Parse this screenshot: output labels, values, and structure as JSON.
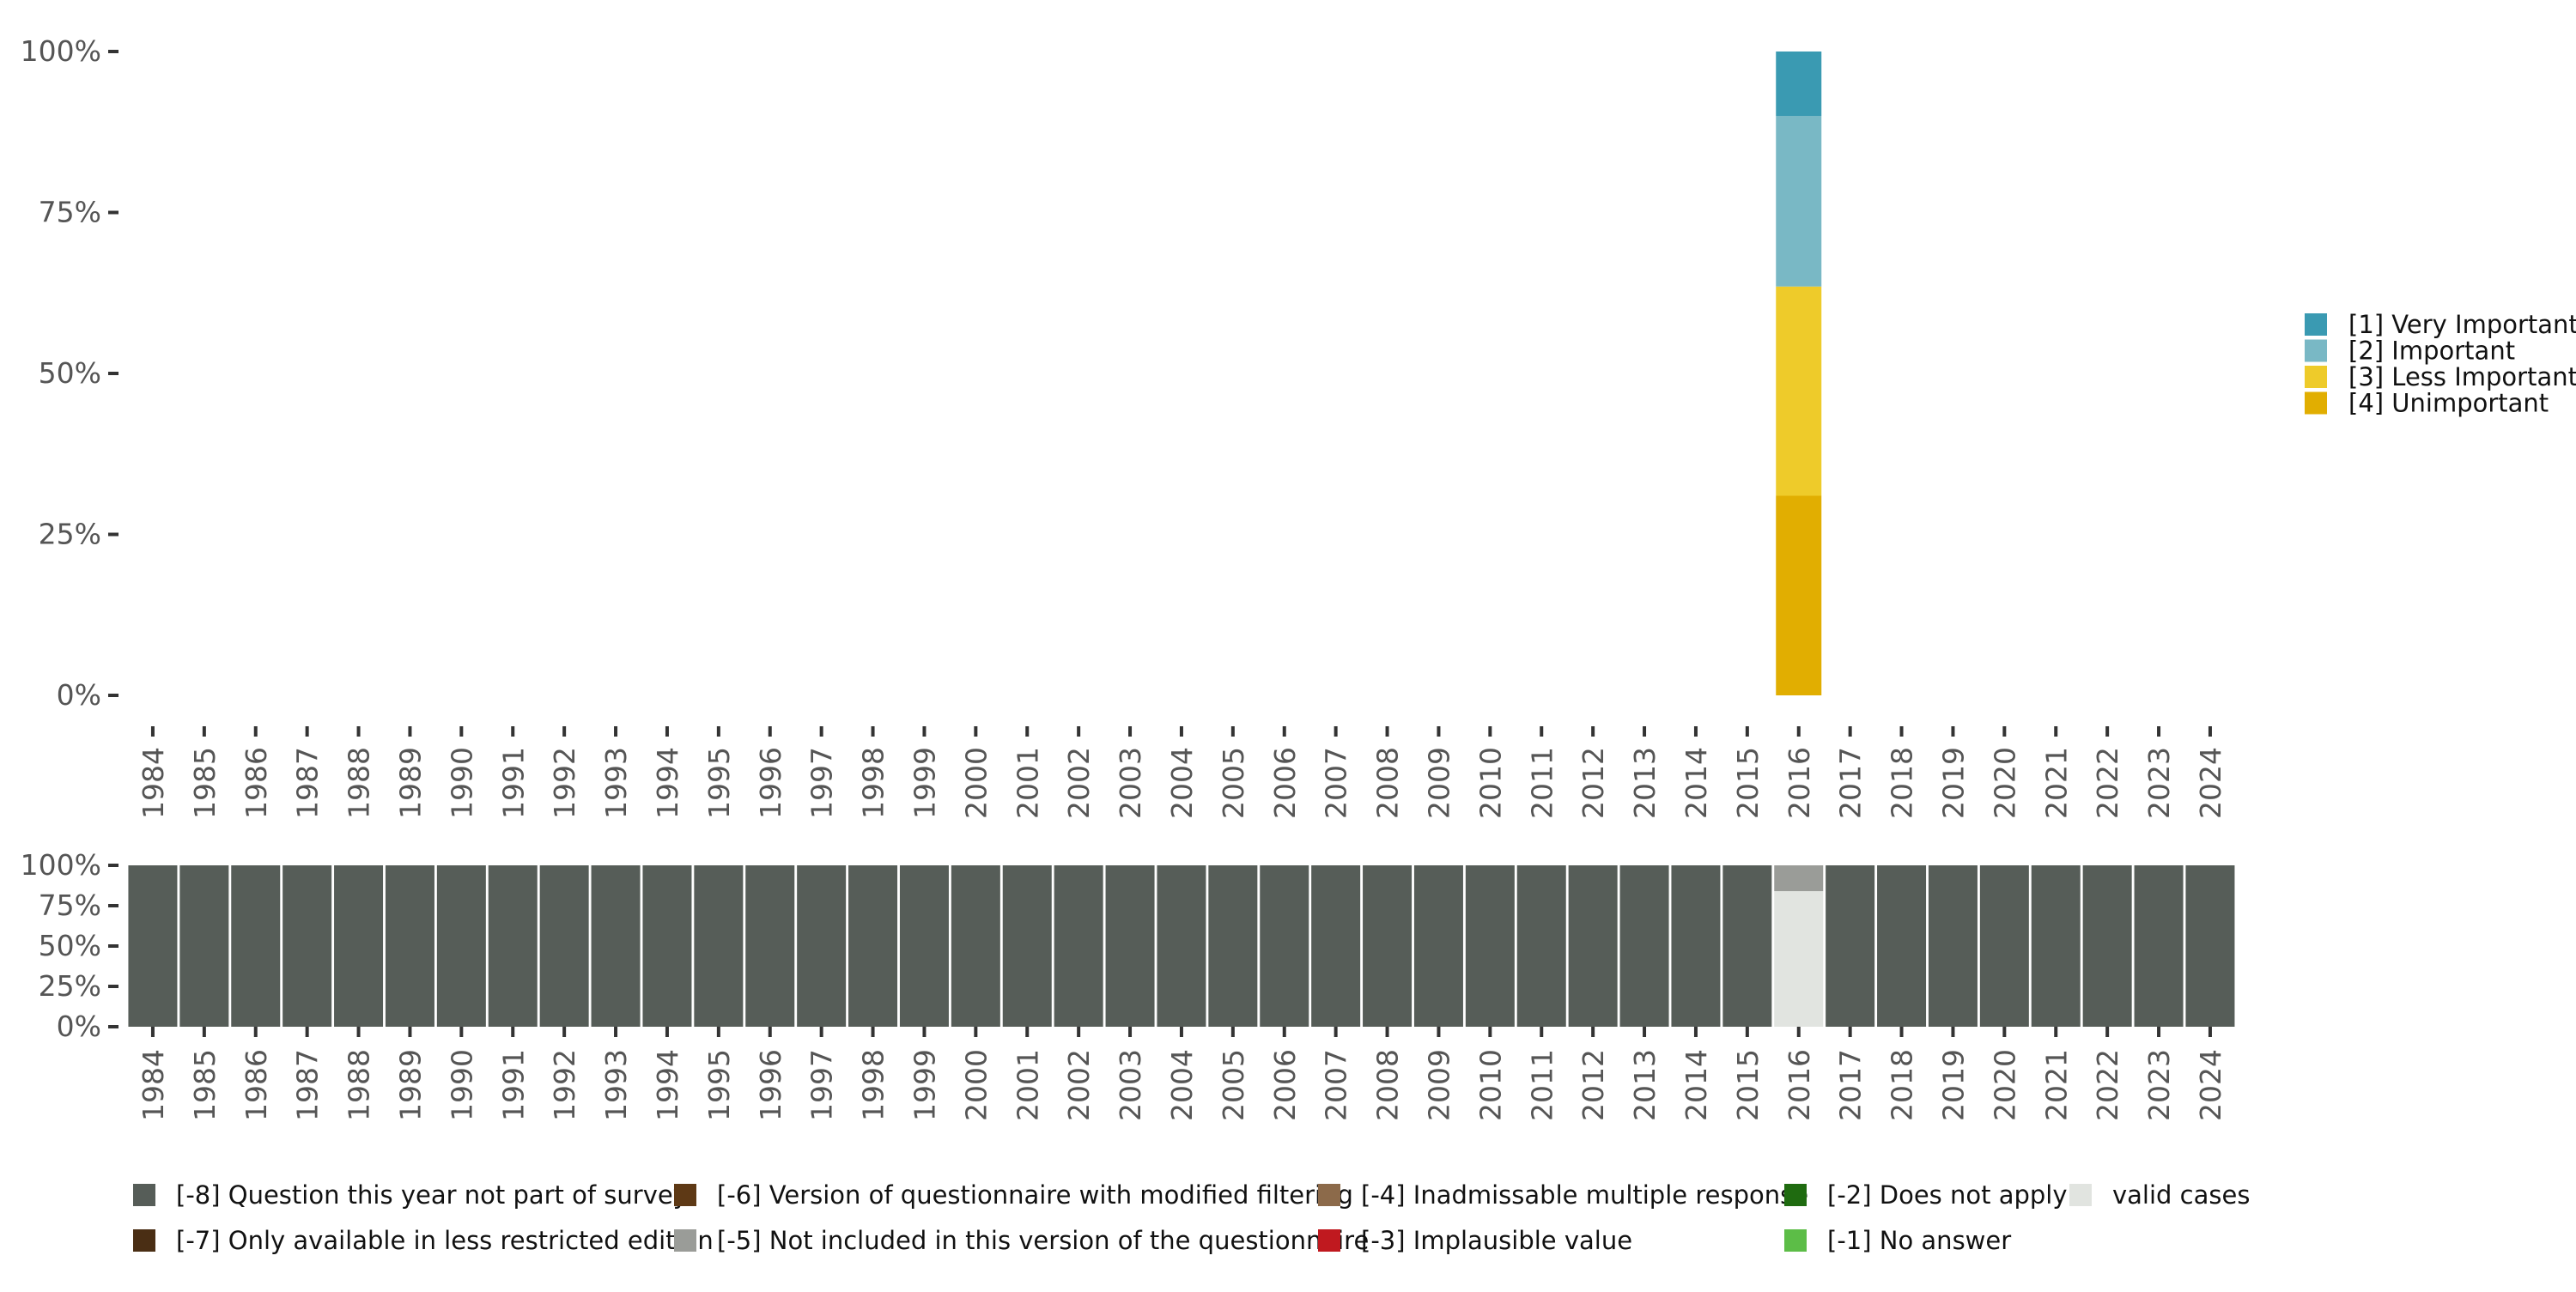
{
  "chart_data": [
    {
      "type": "bar",
      "stacked": true,
      "title": "",
      "xlabel": "",
      "ylabel": "",
      "ylim": [
        0,
        100
      ],
      "yticks": [
        "0%",
        "25%",
        "50%",
        "75%",
        "100%"
      ],
      "categories": [
        "1984",
        "1985",
        "1986",
        "1987",
        "1988",
        "1989",
        "1990",
        "1991",
        "1992",
        "1993",
        "1994",
        "1995",
        "1996",
        "1997",
        "1998",
        "1999",
        "2000",
        "2001",
        "2002",
        "2003",
        "2004",
        "2005",
        "2006",
        "2007",
        "2008",
        "2009",
        "2010",
        "2011",
        "2012",
        "2013",
        "2014",
        "2015",
        "2016",
        "2017",
        "2018",
        "2019",
        "2020",
        "2021",
        "2022",
        "2023",
        "2024"
      ],
      "series": [
        {
          "name": "[4] Unimportant",
          "color": "#e1ae01",
          "values": {
            "2016": 31
          }
        },
        {
          "name": "[3] Less Important",
          "color": "#eecb2a",
          "values": {
            "2016": 32.5
          }
        },
        {
          "name": "[2] Important",
          "color": "#79b8c5",
          "values": {
            "2016": 26.5
          }
        },
        {
          "name": "[1] Very Important",
          "color": "#3a9ab2",
          "values": {
            "2016": 10
          }
        }
      ],
      "legend": {
        "position": "right",
        "items": [
          {
            "label": "[1] Very Important",
            "color": "#3a9ab2"
          },
          {
            "label": "[2] Important",
            "color": "#79b8c5"
          },
          {
            "label": "[3] Less Important",
            "color": "#eecb2a"
          },
          {
            "label": "[4] Unimportant",
            "color": "#e1ae01"
          }
        ]
      }
    },
    {
      "type": "bar",
      "stacked": true,
      "title": "",
      "xlabel": "",
      "ylabel": "",
      "ylim": [
        0,
        100
      ],
      "yticks": [
        "0%",
        "25%",
        "50%",
        "75%",
        "100%"
      ],
      "categories": [
        "1984",
        "1985",
        "1986",
        "1987",
        "1988",
        "1989",
        "1990",
        "1991",
        "1992",
        "1993",
        "1994",
        "1995",
        "1996",
        "1997",
        "1998",
        "1999",
        "2000",
        "2001",
        "2002",
        "2003",
        "2004",
        "2005",
        "2006",
        "2007",
        "2008",
        "2009",
        "2010",
        "2011",
        "2012",
        "2013",
        "2014",
        "2015",
        "2016",
        "2017",
        "2018",
        "2019",
        "2020",
        "2021",
        "2022",
        "2023",
        "2024"
      ],
      "default_series": "[-8] Question this year not part of survey",
      "overrides": {
        "2016": [
          {
            "name": "valid cases",
            "value": 84
          },
          {
            "name": "[-5] Not included in this version of the questionnaire",
            "value": 16
          }
        ]
      },
      "legend": {
        "position": "bottom",
        "items": [
          {
            "label": "[-8] Question this year not part of survey",
            "color": "#565d58"
          },
          {
            "label": "[-7] Only available in less restricted edition",
            "color": "#4a2e14"
          },
          {
            "label": "[-6] Version of questionnaire with modified filtering",
            "color": "#5e3915"
          },
          {
            "label": "[-5] Not included in this version of the questionnaire",
            "color": "#9a9c98"
          },
          {
            "label": "[-4] Inadmissable multiple response",
            "color": "#8c6a4a"
          },
          {
            "label": "[-3] Implausible value",
            "color": "#c0191f"
          },
          {
            "label": "[-2] Does not apply",
            "color": "#1f6b10"
          },
          {
            "label": "[-1] No answer",
            "color": "#5cbd47"
          },
          {
            "label": "valid cases",
            "color": "#e1e4e0"
          }
        ]
      }
    }
  ]
}
